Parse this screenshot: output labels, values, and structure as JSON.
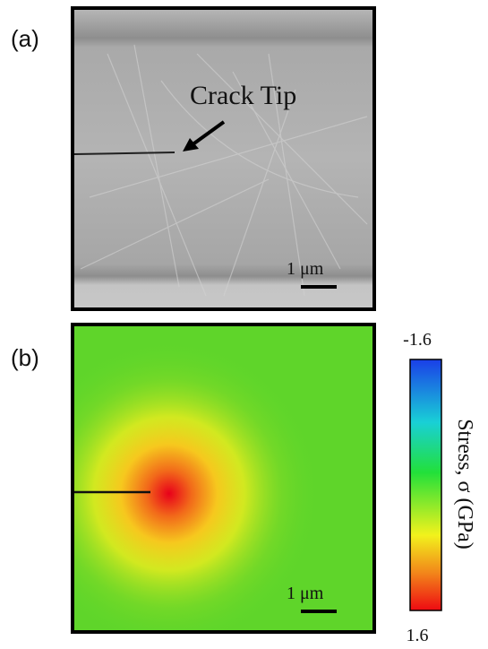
{
  "panel_a": {
    "label": "(a)",
    "annotation": "Crack Tip",
    "scale_bar": "1 μm"
  },
  "panel_b": {
    "label": "(b)",
    "scale_bar": "1 μm"
  },
  "colorbar": {
    "top_label": "-1.6",
    "bottom_label": "1.6",
    "title": "Stress, σ (GPa)"
  }
}
